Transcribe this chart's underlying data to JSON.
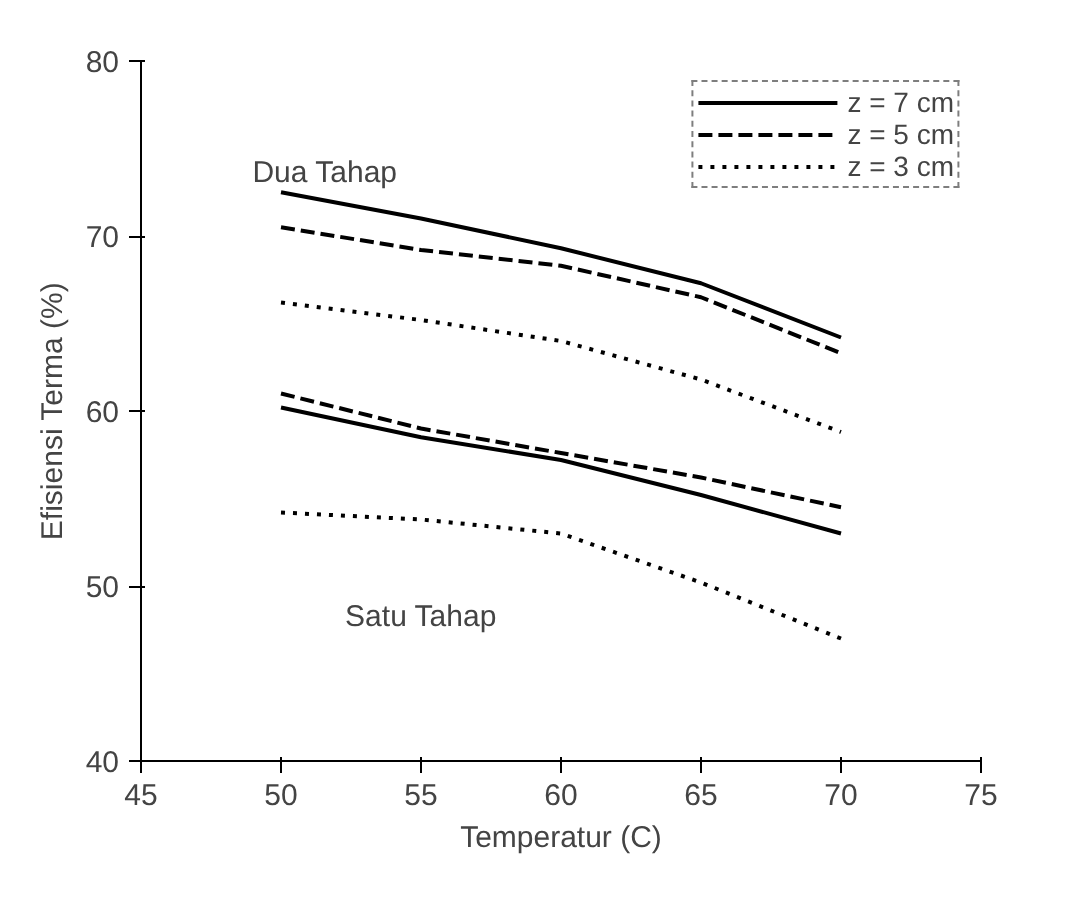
{
  "chart_data": {
    "type": "line",
    "xlabel": "Temperatur (C)",
    "ylabel": "Efisiensi Terma (%)",
    "x": [
      50,
      55,
      60,
      65,
      70
    ],
    "xlim": [
      45,
      75
    ],
    "xticks": [
      45,
      50,
      55,
      60,
      65,
      70,
      75
    ],
    "ylim": [
      40,
      80
    ],
    "yticks": [
      40,
      50,
      60,
      70,
      80
    ],
    "grid": false,
    "legend": "top right",
    "marker": "none",
    "series": [
      {
        "name": "z = 7 cm",
        "color": "#000000",
        "line_style": "solid",
        "values": [
          72.5,
          71.0,
          69.3,
          67.3,
          64.2
        ]
      },
      {
        "name": "z = 5 cm",
        "color": "#000000",
        "line_style": "dashed",
        "values": [
          70.5,
          69.2,
          68.3,
          66.5,
          63.3
        ]
      },
      {
        "name": "z = 3 cm",
        "color": "#000000",
        "line_style": "dotted",
        "values": [
          66.2,
          65.2,
          64.0,
          61.8,
          58.8
        ]
      },
      {
        "color": "#000000",
        "line_style": "solid",
        "values": [
          60.2,
          58.5,
          57.2,
          55.2,
          53.0
        ]
      },
      {
        "color": "#000000",
        "line_style": "dashed",
        "values": [
          61.0,
          59.0,
          57.6,
          56.2,
          54.5
        ]
      },
      {
        "color": "#000000",
        "line_style": "dotted",
        "values": [
          54.2,
          53.8,
          53.0,
          50.2,
          47.0
        ]
      }
    ],
    "annotations": [
      "Dua Tahap",
      "Satu Tahap"
    ]
  }
}
